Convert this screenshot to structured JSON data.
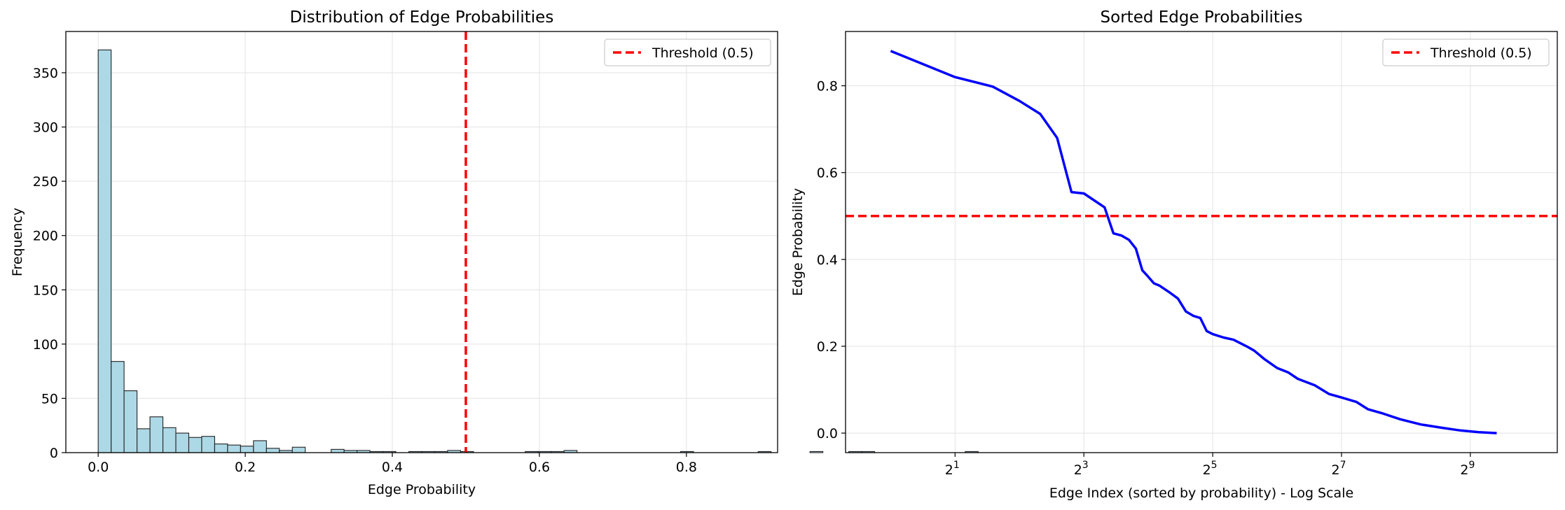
{
  "chart_data": [
    {
      "type": "bar",
      "title": "Distribution of Edge Probabilities",
      "xlabel": "Edge Probability",
      "ylabel": "Frequency",
      "xlim": [
        -0.044,
        0.924
      ],
      "ylim": [
        0,
        388
      ],
      "xticks": [
        0.0,
        0.2,
        0.4,
        0.6,
        0.8
      ],
      "xtick_labels": [
        "0.0",
        "0.2",
        "0.4",
        "0.6",
        "0.8"
      ],
      "yticks": [
        0,
        50,
        100,
        150,
        200,
        250,
        300,
        350
      ],
      "ytick_labels": [
        "0",
        "50",
        "100",
        "150",
        "200",
        "250",
        "300",
        "350"
      ],
      "grid": true,
      "bin_edges_start": 0.0,
      "bin_width": 0.0176,
      "counts": [
        371,
        84,
        57,
        22,
        33,
        23,
        18,
        14,
        15,
        8,
        7,
        6,
        11,
        4,
        2,
        5,
        0,
        0,
        3,
        2,
        2,
        1,
        1,
        0,
        1,
        1,
        1,
        2,
        1,
        0,
        0,
        0,
        0,
        1,
        1,
        1,
        2,
        0,
        0,
        0,
        0,
        0,
        0,
        0,
        0,
        1,
        0,
        0,
        0,
        0,
        0,
        1,
        0,
        0,
        0,
        1,
        0,
        0,
        1,
        1,
        0,
        0,
        0,
        0,
        0,
        0,
        0,
        1
      ],
      "bar_color": "#add8e6",
      "edge_color": "#222222",
      "threshold": {
        "value": 0.5,
        "label": "Threshold (0.5)",
        "color": "#ff0000"
      },
      "legend_position": "top-right"
    },
    {
      "type": "line",
      "title": "Sorted Edge Probabilities",
      "xlabel": "Edge Index (sorted by probability) - Log Scale",
      "ylabel": "Edge Probability",
      "x_scale": "log2",
      "xlim_log2": [
        -0.7,
        10.35
      ],
      "ylim": [
        -0.045,
        0.925
      ],
      "xtick_exponents": [
        1,
        3,
        5,
        7,
        9
      ],
      "xtick_base": "2",
      "yticks": [
        0.0,
        0.2,
        0.4,
        0.6,
        0.8
      ],
      "ytick_labels": [
        "0.0",
        "0.2",
        "0.4",
        "0.6",
        "0.8"
      ],
      "grid": true,
      "line_color": "#0000ff",
      "series": [
        {
          "x": [
            1,
            2,
            3,
            4,
            5,
            6,
            7,
            8,
            9,
            10,
            11,
            12,
            13,
            14,
            15,
            16,
            17,
            18,
            20,
            22,
            24,
            26,
            28,
            30,
            32,
            36,
            40,
            46,
            50,
            56,
            64,
            72,
            80,
            96,
            112,
            128,
            150,
            170,
            200,
            240,
            300,
            380,
            460,
            560,
            680
          ],
          "y": [
            0.88,
            0.82,
            0.798,
            0.765,
            0.735,
            0.68,
            0.555,
            0.552,
            0.535,
            0.52,
            0.46,
            0.455,
            0.445,
            0.425,
            0.375,
            0.36,
            0.345,
            0.34,
            0.325,
            0.31,
            0.28,
            0.27,
            0.265,
            0.235,
            0.228,
            0.22,
            0.215,
            0.2,
            0.19,
            0.17,
            0.15,
            0.14,
            0.125,
            0.11,
            0.09,
            0.082,
            0.072,
            0.055,
            0.045,
            0.032,
            0.02,
            0.012,
            0.006,
            0.002,
            0.0
          ]
        }
      ],
      "threshold": {
        "value": 0.5,
        "label": "Threshold (0.5)",
        "color": "#ff0000"
      },
      "legend_position": "top-right"
    }
  ]
}
